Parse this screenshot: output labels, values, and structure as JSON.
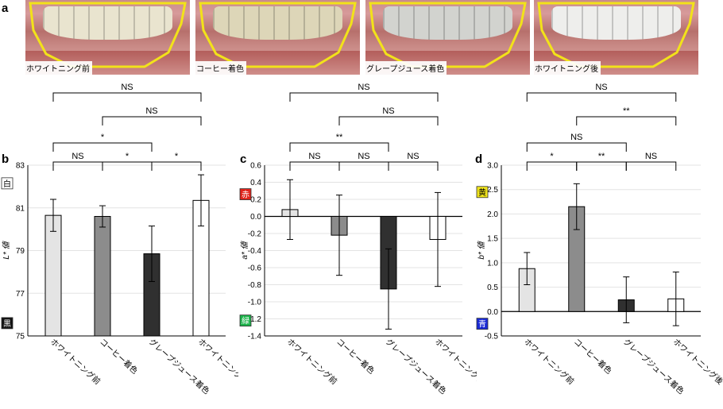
{
  "panel_letters": {
    "a": "a",
    "b": "b",
    "c": "c",
    "d": "d"
  },
  "photos": [
    {
      "label": "ホワイトニング前",
      "teeth_color": "#e9e4cf"
    },
    {
      "label": "コーヒー着色",
      "teeth_color": "#ddd6b8"
    },
    {
      "label": "グレープジュース着色",
      "teeth_color": "#d2d3cf"
    },
    {
      "label": "ホワイトニング後",
      "teeth_color": "#eeeeec"
    }
  ],
  "outline_color": "#f2e21a",
  "chart_data": [
    {
      "type": "bar",
      "panel": "b",
      "categories": [
        "ホワイトニング前",
        "コーヒー着色",
        "グレープジュース着色",
        "ホワイトニング後"
      ],
      "values": [
        80.65,
        80.6,
        78.85,
        81.35
      ],
      "errors": [
        0.75,
        0.5,
        1.3,
        1.2
      ],
      "colors": [
        "#e4e4e4",
        "#8c8c8c",
        "#303030",
        "#ffffff"
      ],
      "ylabel": "L* 値",
      "ylim": [
        75,
        83
      ],
      "yticks": [
        "75",
        "77",
        "79",
        "81",
        "83"
      ],
      "ytick_values": [
        75,
        77,
        79,
        81,
        83
      ],
      "indicators": [
        {
          "text": "白",
          "value": 82.15,
          "bg": "#ffffff",
          "fg": "#000000"
        },
        {
          "text": "黒",
          "value": 75.6,
          "bg": "#111111",
          "fg": "#ffffff"
        }
      ],
      "brackets": [
        {
          "from": 0,
          "to": 1,
          "label": "NS",
          "level": 0
        },
        {
          "from": 1,
          "to": 2,
          "label": "*",
          "level": 0
        },
        {
          "from": 2,
          "to": 3,
          "label": "*",
          "level": 0
        },
        {
          "from": 0,
          "to": 2,
          "label": "*",
          "level": 1
        },
        {
          "from": 1,
          "to": 3,
          "label": "NS",
          "level": 2
        },
        {
          "from": 0,
          "to": 3,
          "label": "NS",
          "level": 3
        }
      ]
    },
    {
      "type": "bar",
      "panel": "c",
      "categories": [
        "ホワイトニング前",
        "コーヒー着色",
        "グレープジュース着色",
        "ホワイトニング後"
      ],
      "values": [
        0.08,
        -0.22,
        -0.85,
        -0.27
      ],
      "errors": [
        0.35,
        0.47,
        0.47,
        0.55
      ],
      "colors": [
        "#e4e4e4",
        "#8c8c8c",
        "#303030",
        "#ffffff"
      ],
      "ylabel": "a* 値",
      "ylim": [
        -1.4,
        0.6
      ],
      "yticks": [
        "-1.4",
        "-1.2",
        "-1.0",
        "-0.8",
        "-0.6",
        "-0.4",
        "-0.2",
        "0.0",
        "0.2",
        "0.4",
        "0.6"
      ],
      "ytick_values": [
        -1.4,
        -1.2,
        -1.0,
        -0.8,
        -0.6,
        -0.4,
        -0.2,
        0.0,
        0.2,
        0.4,
        0.6
      ],
      "indicators": [
        {
          "text": "赤",
          "value": 0.26,
          "bg": "#e0231b",
          "fg": "#ffffff"
        },
        {
          "text": "緑",
          "value": -1.22,
          "bg": "#1bb34a",
          "fg": "#ffffff"
        }
      ],
      "brackets": [
        {
          "from": 0,
          "to": 1,
          "label": "NS",
          "level": 0
        },
        {
          "from": 1,
          "to": 2,
          "label": "NS",
          "level": 0
        },
        {
          "from": 2,
          "to": 3,
          "label": "NS",
          "level": 0
        },
        {
          "from": 0,
          "to": 2,
          "label": "**",
          "level": 1
        },
        {
          "from": 1,
          "to": 3,
          "label": "NS",
          "level": 2
        },
        {
          "from": 0,
          "to": 3,
          "label": "NS",
          "level": 3
        }
      ]
    },
    {
      "type": "bar",
      "panel": "d",
      "categories": [
        "ホワイトニング前",
        "コーヒー着色",
        "グレープジュース着色",
        "ホワイトニング後"
      ],
      "values": [
        0.88,
        2.15,
        0.24,
        0.26
      ],
      "errors": [
        0.33,
        0.47,
        0.47,
        0.55
      ],
      "colors": [
        "#e4e4e4",
        "#8c8c8c",
        "#303030",
        "#ffffff"
      ],
      "ylabel": "b* 値",
      "ylim": [
        -0.5,
        3.0
      ],
      "yticks": [
        "-0.5",
        "0.0",
        "0.5",
        "1.0",
        "1.5",
        "2.0",
        "2.5",
        "3.0"
      ],
      "ytick_values": [
        -0.5,
        0.0,
        0.5,
        1.0,
        1.5,
        2.0,
        2.5,
        3.0
      ],
      "indicators": [
        {
          "text": "黄",
          "value": 2.45,
          "bg": "#f0e41c",
          "fg": "#000000"
        },
        {
          "text": "青",
          "value": -0.25,
          "bg": "#1a2ad6",
          "fg": "#ffffff"
        }
      ],
      "brackets": [
        {
          "from": 0,
          "to": 1,
          "label": "*",
          "level": 0
        },
        {
          "from": 1,
          "to": 2,
          "label": "**",
          "level": 0
        },
        {
          "from": 2,
          "to": 3,
          "label": "NS",
          "level": 0
        },
        {
          "from": 0,
          "to": 2,
          "label": "NS",
          "level": 1
        },
        {
          "from": 1,
          "to": 3,
          "label": "**",
          "level": 2
        },
        {
          "from": 0,
          "to": 3,
          "label": "NS",
          "level": 3
        }
      ]
    }
  ]
}
